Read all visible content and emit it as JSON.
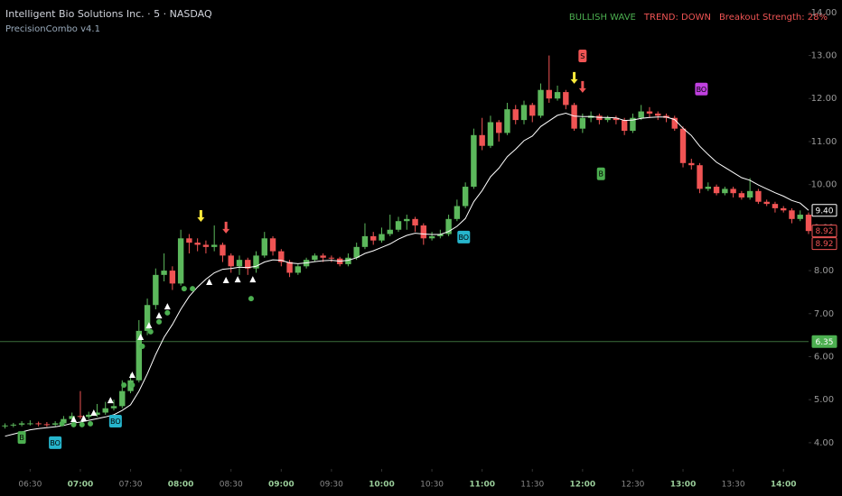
{
  "chart_data": {
    "type": "candlestick",
    "title": "Intelligent Bio Solutions Inc. · 5 · NASDAQ",
    "subtitle": "PrecisionCombo v4.1",
    "status": [
      {
        "text": "BULLISH WAVE",
        "color": "#4caf50"
      },
      {
        "text": "TREND: DOWN",
        "color": "#f05454"
      },
      {
        "text": "Breakout Strength: 28%",
        "color": "#f05454"
      }
    ],
    "up_color": "#5cb85c",
    "down_color": "#f05454",
    "ma_color": "#ffffff",
    "grid": false,
    "xlim": [
      372,
      855
    ],
    "ylim": [
      3.39,
      14.29
    ],
    "xticks": [
      {
        "value": 390,
        "label": "06:30"
      },
      {
        "value": 420,
        "label": "07:00"
      },
      {
        "value": 450,
        "label": "07:30"
      },
      {
        "value": 480,
        "label": "08:00"
      },
      {
        "value": 510,
        "label": "08:30"
      },
      {
        "value": 540,
        "label": "09:00"
      },
      {
        "value": 570,
        "label": "09:30"
      },
      {
        "value": 600,
        "label": "10:00"
      },
      {
        "value": 630,
        "label": "10:30"
      },
      {
        "value": 660,
        "label": "11:00"
      },
      {
        "value": 690,
        "label": "11:30"
      },
      {
        "value": 720,
        "label": "12:00"
      },
      {
        "value": 750,
        "label": "12:30"
      },
      {
        "value": 780,
        "label": "13:00"
      },
      {
        "value": 810,
        "label": "13:30"
      },
      {
        "value": 840,
        "label": "14:00"
      }
    ],
    "yticks": [
      {
        "value": 4,
        "label": "4.00"
      },
      {
        "value": 5,
        "label": "5.00"
      },
      {
        "value": 6,
        "label": "6.00"
      },
      {
        "value": 7,
        "label": "7.00"
      },
      {
        "value": 8,
        "label": "8.00"
      },
      {
        "value": 9,
        "label": "9.00"
      },
      {
        "value": 10,
        "label": "10.00"
      },
      {
        "value": 11,
        "label": "11.00"
      },
      {
        "value": 12,
        "label": "12.00"
      },
      {
        "value": 13,
        "label": "13.00"
      },
      {
        "value": 14,
        "label": "14.00"
      }
    ],
    "x": [
      375,
      380,
      385,
      390,
      395,
      400,
      405,
      410,
      415,
      420,
      425,
      430,
      435,
      440,
      445,
      450,
      455,
      460,
      465,
      470,
      475,
      480,
      485,
      490,
      495,
      500,
      505,
      510,
      515,
      520,
      525,
      530,
      535,
      540,
      545,
      550,
      555,
      560,
      565,
      570,
      575,
      580,
      585,
      590,
      595,
      600,
      605,
      610,
      615,
      620,
      625,
      630,
      635,
      640,
      645,
      650,
      655,
      660,
      665,
      670,
      675,
      680,
      685,
      690,
      695,
      700,
      705,
      710,
      715,
      720,
      725,
      730,
      735,
      740,
      745,
      750,
      755,
      760,
      765,
      770,
      775,
      780,
      785,
      790,
      795,
      800,
      805,
      810,
      815,
      820,
      825,
      830,
      835,
      840,
      845,
      850,
      855
    ],
    "open": [
      4.38,
      4.4,
      4.42,
      4.45,
      4.45,
      4.43,
      4.42,
      4.45,
      4.55,
      4.62,
      4.6,
      4.65,
      4.7,
      4.8,
      4.85,
      5.2,
      5.45,
      6.6,
      7.2,
      7.9,
      8.0,
      7.7,
      8.75,
      8.65,
      8.6,
      8.55,
      8.6,
      8.35,
      8.1,
      8.25,
      8.05,
      8.35,
      8.75,
      8.45,
      8.2,
      7.95,
      8.1,
      8.25,
      8.35,
      8.3,
      8.28,
      8.15,
      8.3,
      8.55,
      8.8,
      8.7,
      8.85,
      8.95,
      9.15,
      9.2,
      9.05,
      8.75,
      8.8,
      8.85,
      9.2,
      9.5,
      9.95,
      11.15,
      10.9,
      11.45,
      11.2,
      11.75,
      11.5,
      11.85,
      11.6,
      12.2,
      12.0,
      12.15,
      11.85,
      11.3,
      11.55,
      11.6,
      11.5,
      11.55,
      11.5,
      11.25,
      11.55,
      11.7,
      11.65,
      11.6,
      11.55,
      11.3,
      10.5,
      10.45,
      9.9,
      9.95,
      9.8,
      9.9,
      9.8,
      9.7,
      9.85,
      9.6,
      9.55,
      9.45,
      9.4,
      9.2,
      9.3
    ],
    "high": [
      4.45,
      4.46,
      4.5,
      4.52,
      4.49,
      4.48,
      4.5,
      4.62,
      4.7,
      5.2,
      4.72,
      4.9,
      4.95,
      5.0,
      5.45,
      5.6,
      6.85,
      7.35,
      8.05,
      8.4,
      8.1,
      8.95,
      8.85,
      8.75,
      8.7,
      9.05,
      8.65,
      8.4,
      8.35,
      8.3,
      8.45,
      8.9,
      8.8,
      8.5,
      8.25,
      8.15,
      8.3,
      8.4,
      8.4,
      8.35,
      8.32,
      8.4,
      8.65,
      9.1,
      8.9,
      9.0,
      9.3,
      9.25,
      9.3,
      9.25,
      9.1,
      8.9,
      8.95,
      9.3,
      9.65,
      10.05,
      11.3,
      11.55,
      11.6,
      11.5,
      11.9,
      11.85,
      11.95,
      11.9,
      12.35,
      13.0,
      12.3,
      12.2,
      11.9,
      11.65,
      11.7,
      11.65,
      11.6,
      11.6,
      11.55,
      11.65,
      11.85,
      11.8,
      11.7,
      11.65,
      11.6,
      11.35,
      10.6,
      10.5,
      10.05,
      10.0,
      9.95,
      9.95,
      9.85,
      10.15,
      9.9,
      9.65,
      9.6,
      9.5,
      9.45,
      9.4,
      9.35
    ],
    "low": [
      4.33,
      4.36,
      4.38,
      4.4,
      4.38,
      4.37,
      4.38,
      4.4,
      4.5,
      4.55,
      4.55,
      4.6,
      4.65,
      4.75,
      4.8,
      5.15,
      5.4,
      6.5,
      7.1,
      7.75,
      7.55,
      7.65,
      8.4,
      8.45,
      8.4,
      8.45,
      8.2,
      7.95,
      7.9,
      7.9,
      7.95,
      8.3,
      8.35,
      8.1,
      7.85,
      7.9,
      8.05,
      8.2,
      8.2,
      8.2,
      8.1,
      8.1,
      8.25,
      8.5,
      8.6,
      8.65,
      8.8,
      8.9,
      8.95,
      8.9,
      8.6,
      8.7,
      8.75,
      8.8,
      9.15,
      9.45,
      9.9,
      10.8,
      10.85,
      11.0,
      11.15,
      11.4,
      11.4,
      11.45,
      11.55,
      11.9,
      11.95,
      11.75,
      11.25,
      11.2,
      11.45,
      11.4,
      11.45,
      11.4,
      11.15,
      11.2,
      11.5,
      11.55,
      11.5,
      11.45,
      11.25,
      10.4,
      10.35,
      9.8,
      9.85,
      9.75,
      9.75,
      9.7,
      9.65,
      9.65,
      9.55,
      9.5,
      9.35,
      9.35,
      9.1,
      9.15,
      8.85
    ],
    "close": [
      4.4,
      4.42,
      4.45,
      4.45,
      4.43,
      4.42,
      4.45,
      4.55,
      4.62,
      4.6,
      4.65,
      4.7,
      4.8,
      4.85,
      5.2,
      5.45,
      6.6,
      7.2,
      7.9,
      8.0,
      7.7,
      8.75,
      8.65,
      8.6,
      8.55,
      8.6,
      8.35,
      8.1,
      8.25,
      8.05,
      8.35,
      8.75,
      8.45,
      8.2,
      7.95,
      8.1,
      8.25,
      8.35,
      8.3,
      8.28,
      8.15,
      8.3,
      8.55,
      8.8,
      8.7,
      8.85,
      8.95,
      9.15,
      9.2,
      9.05,
      8.75,
      8.8,
      8.85,
      9.2,
      9.5,
      9.95,
      11.15,
      10.9,
      11.45,
      11.2,
      11.75,
      11.5,
      11.85,
      11.6,
      12.2,
      12.0,
      12.15,
      11.85,
      11.3,
      11.55,
      11.6,
      11.5,
      11.55,
      11.5,
      11.25,
      11.55,
      11.7,
      11.65,
      11.6,
      11.55,
      11.3,
      10.5,
      10.45,
      9.9,
      9.95,
      9.8,
      9.9,
      9.8,
      9.7,
      9.85,
      9.6,
      9.55,
      9.45,
      9.4,
      9.2,
      9.3,
      8.92
    ],
    "ma": [
      4.15,
      4.2,
      4.25,
      4.3,
      4.33,
      4.35,
      4.37,
      4.4,
      4.45,
      4.48,
      4.52,
      4.56,
      4.6,
      4.65,
      4.75,
      4.88,
      5.2,
      5.6,
      6.05,
      6.45,
      6.75,
      7.1,
      7.4,
      7.62,
      7.8,
      7.95,
      8.03,
      8.05,
      8.08,
      8.07,
      8.1,
      8.2,
      8.25,
      8.24,
      8.18,
      8.16,
      8.18,
      8.21,
      8.23,
      8.24,
      8.22,
      8.24,
      8.3,
      8.4,
      8.46,
      8.54,
      8.62,
      8.73,
      8.82,
      8.87,
      8.85,
      8.84,
      8.84,
      8.91,
      9.03,
      9.21,
      9.6,
      9.86,
      10.18,
      10.38,
      10.65,
      10.82,
      11.02,
      11.13,
      11.35,
      11.48,
      11.61,
      11.66,
      11.59,
      11.58,
      11.58,
      11.56,
      11.56,
      11.55,
      11.49,
      11.5,
      11.54,
      11.56,
      11.57,
      11.57,
      11.51,
      11.31,
      11.14,
      10.89,
      10.7,
      10.52,
      10.4,
      10.28,
      10.16,
      10.1,
      9.99,
      9.9,
      9.81,
      9.73,
      9.63,
      9.57,
      9.4
    ],
    "markers": [
      {
        "label": "B",
        "x": 385,
        "y": 4.12,
        "color": "#4caf50"
      },
      {
        "label": "BO",
        "x": 405,
        "y": 4.0,
        "color": "#26b5cc"
      },
      {
        "label": "BO",
        "x": 441,
        "y": 4.5,
        "color": "#26b5cc"
      },
      {
        "label": "BO",
        "x": 649,
        "y": 8.78,
        "color": "#26b5cc"
      },
      {
        "label": "B",
        "x": 731,
        "y": 10.25,
        "color": "#4caf50"
      },
      {
        "label": "S",
        "x": 720,
        "y": 12.99,
        "color": "#f05454"
      },
      {
        "label": "BO",
        "x": 791,
        "y": 12.22,
        "color": "#c040e0"
      }
    ],
    "arrows": [
      {
        "x": 492,
        "y": 9.26,
        "color": "#ffeb3b"
      },
      {
        "x": 507,
        "y": 8.99,
        "color": "#f05454"
      },
      {
        "x": 715,
        "y": 12.47,
        "color": "#ffeb3b"
      },
      {
        "x": 720,
        "y": 12.26,
        "color": "#f05454"
      }
    ],
    "triangles": {
      "x": [
        416,
        422,
        428,
        438,
        451,
        456,
        461,
        467,
        472,
        497,
        507,
        514,
        523
      ],
      "y": [
        4.54,
        4.56,
        4.69,
        4.98,
        5.57,
        6.45,
        6.72,
        6.95,
        7.16,
        7.73,
        7.77,
        7.79,
        7.79
      ]
    },
    "dots": {
      "x": [
        409,
        416,
        421,
        426,
        446,
        451,
        457,
        462,
        467,
        472,
        482,
        487,
        522
      ],
      "y": [
        4.44,
        4.42,
        4.42,
        4.44,
        5.34,
        5.34,
        6.24,
        6.58,
        6.81,
        7.02,
        7.58,
        7.58,
        7.35
      ]
    },
    "hline": 6.35,
    "price_labels": [
      {
        "value": 9.4,
        "label": "9.40",
        "style": "outline",
        "color": "#ffffff"
      },
      {
        "value": 8.92,
        "label": "8.92",
        "style": "outline",
        "color": "#f05454"
      },
      {
        "value": 8.92,
        "label": "8.92",
        "style": "outline",
        "color": "#f05454"
      },
      {
        "value": 6.35,
        "label": "6.35",
        "style": "fill",
        "color": "#4caf50"
      }
    ]
  }
}
